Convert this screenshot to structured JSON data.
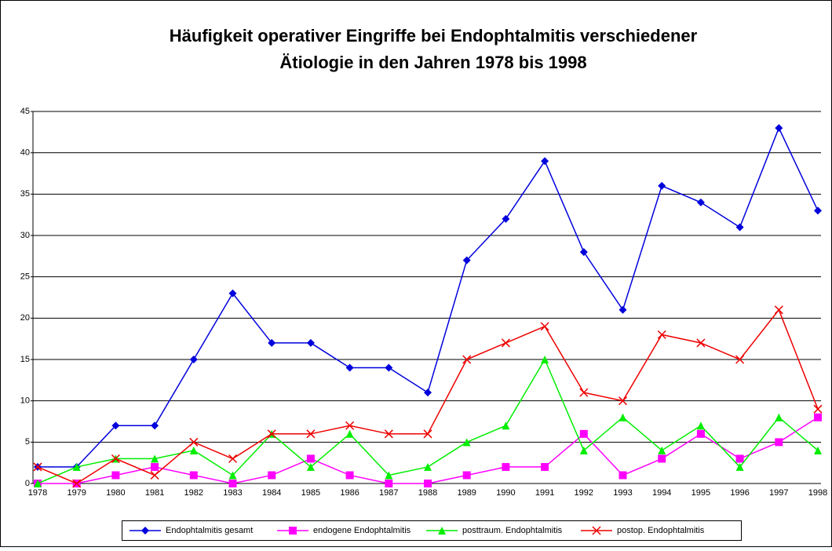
{
  "chart_data": {
    "type": "line",
    "title": [
      "Häufigkeit operativer Eingriffe bei Endophtalmitis verschiedener",
      "Ätiologie in den Jahren 1978 bis 1998"
    ],
    "categories": [
      "1978",
      "1979",
      "1980",
      "1981",
      "1982",
      "1983",
      "1984",
      "1985",
      "1986",
      "1987",
      "1988",
      "1989",
      "1990",
      "1991",
      "1992",
      "1993",
      "1994",
      "1995",
      "1996",
      "1997",
      "1998"
    ],
    "series": [
      {
        "name": "Endophtalmitis gesamt",
        "color": "#0000dd",
        "marker": "diamond",
        "values": [
          2,
          2,
          7,
          7,
          15,
          23,
          17,
          17,
          14,
          14,
          11,
          27,
          32,
          39,
          28,
          21,
          36,
          34,
          31,
          43,
          33
        ]
      },
      {
        "name": "endogene Endophtalmitis",
        "color": "#ff00ff",
        "marker": "square",
        "values": [
          0,
          0,
          1,
          2,
          1,
          0,
          1,
          3,
          1,
          0,
          0,
          1,
          2,
          2,
          6,
          1,
          3,
          6,
          3,
          5,
          8
        ]
      },
      {
        "name": "posttraum. Endophtalmitis",
        "color": "#00ee00",
        "marker": "triangle",
        "values": [
          0,
          2,
          3,
          3,
          4,
          1,
          6,
          2,
          6,
          1,
          2,
          5,
          7,
          15,
          4,
          8,
          4,
          7,
          2,
          8,
          4
        ]
      },
      {
        "name": "postop. Endophtalmitis",
        "color": "#ee0000",
        "marker": "x",
        "values": [
          2,
          0,
          3,
          1,
          5,
          3,
          6,
          6,
          7,
          6,
          6,
          15,
          17,
          19,
          11,
          10,
          18,
          17,
          15,
          21,
          9
        ]
      }
    ],
    "ylim": [
      0,
      45
    ],
    "yticks": [
      0,
      5,
      10,
      15,
      20,
      25,
      30,
      35,
      40,
      45
    ],
    "grid": true,
    "legend": "bottom"
  }
}
